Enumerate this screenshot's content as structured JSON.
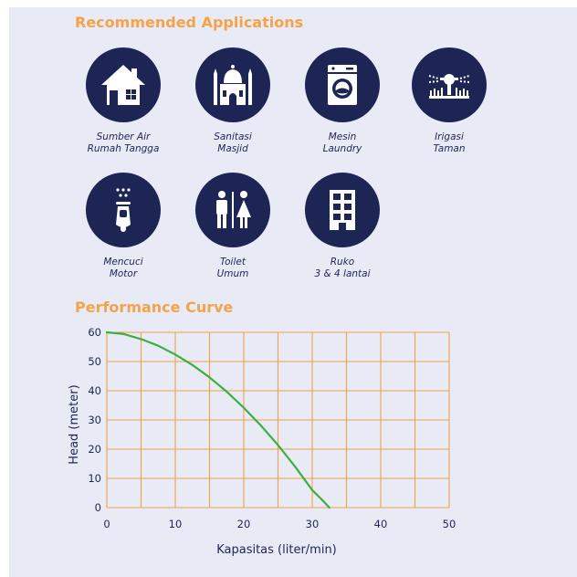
{
  "applications": {
    "title": "Recommended Applications",
    "items": [
      {
        "icon": "house-icon",
        "line1": "Sumber Air",
        "line2": "Rumah Tangga"
      },
      {
        "icon": "mosque-icon",
        "line1": "Sanitasi",
        "line2": "Masjid"
      },
      {
        "icon": "washing-machine-icon",
        "line1": "Mesin",
        "line2": "Laundry"
      },
      {
        "icon": "garden-sprinkler-icon",
        "line1": "Irigasi",
        "line2": "Taman"
      },
      {
        "icon": "scooter-wash-icon",
        "line1": "Mencuci",
        "line2": "Motor"
      },
      {
        "icon": "toilet-people-icon",
        "line1": "Toilet",
        "line2": "Umum"
      },
      {
        "icon": "building-icon",
        "line1": "Ruko",
        "line2": "3 & 4 lantai"
      }
    ]
  },
  "performance": {
    "title": "Performance Curve"
  },
  "colors": {
    "navy": "#1d2554",
    "orange": "#f5a34a",
    "grid": "#f0a04b",
    "curve": "#3fae3f",
    "background": "#e8ebf5"
  },
  "chart_data": {
    "type": "line",
    "title": "Performance Curve",
    "xlabel": "Kapasitas (liter/min)",
    "ylabel": "Head (meter)",
    "xlim": [
      0,
      50
    ],
    "ylim": [
      0,
      60
    ],
    "x_ticks": [
      0,
      10,
      20,
      30,
      40,
      50
    ],
    "y_ticks": [
      0,
      10,
      20,
      30,
      40,
      50,
      60
    ],
    "grid": true,
    "series": [
      {
        "x": [
          0,
          2.5,
          5,
          7.5,
          10,
          12.5,
          15,
          17.5,
          20,
          22.5,
          25,
          27.5,
          30,
          31.5,
          32.5
        ],
        "y": [
          60,
          59.4,
          57.7,
          55.4,
          52.4,
          48.8,
          44.6,
          39.7,
          34.2,
          28.1,
          21.4,
          14,
          6,
          2.5,
          0
        ]
      }
    ]
  }
}
